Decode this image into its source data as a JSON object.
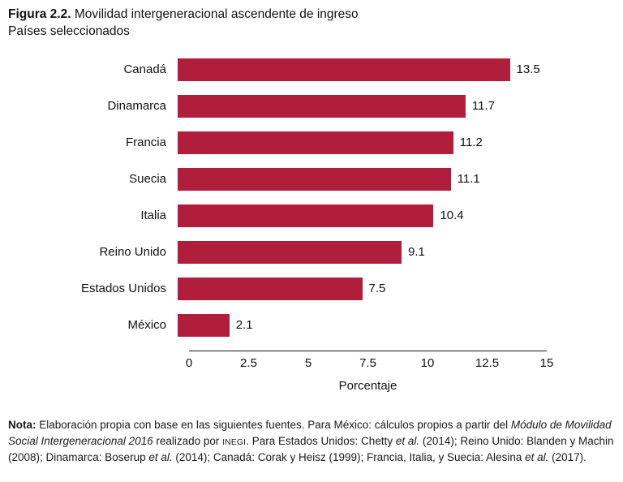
{
  "title": {
    "prefix": "Figura 2.2.",
    "text": " Movilidad intergeneracional ascendente de ingreso",
    "subtitle": "Países seleccionados"
  },
  "chart_data": {
    "type": "bar",
    "orientation": "horizontal",
    "categories": [
      "Canadá",
      "Dinamarca",
      "Francia",
      "Suecia",
      "Italia",
      "Reino Unido",
      "Estados Unidos",
      "México"
    ],
    "values": [
      13.5,
      11.7,
      11.2,
      11.1,
      10.4,
      9.1,
      7.5,
      2.1
    ],
    "value_labels": [
      "13.5",
      "11.7",
      "11.2",
      "11.1",
      "10.4",
      "9.1",
      "7.5",
      "2.1"
    ],
    "title": "Figura 2.2. Movilidad intergeneracional ascendente de ingreso",
    "subtitle": "Países seleccionados",
    "xlabel": "Porcentaje",
    "ylabel": "",
    "xlim": [
      0,
      15
    ],
    "xticks": [
      0,
      2.5,
      5,
      7.5,
      10,
      12.5,
      15
    ],
    "xtick_labels": [
      "0",
      "2.5",
      "5",
      "7.5",
      "10",
      "12.5",
      "15"
    ],
    "bar_color": "#b01e3c",
    "grid": false,
    "legend": false
  },
  "note": {
    "segments": [
      {
        "text": "Nota:",
        "style": "bold"
      },
      {
        "text": " Elaboración propia con base en las siguientes fuentes. Para México: cálculos propios a partir del ",
        "style": "normal"
      },
      {
        "text": "Módulo de Movilidad Social Intergeneracional 2016",
        "style": "italic"
      },
      {
        "text": " realizado por ",
        "style": "normal"
      },
      {
        "text": "INEGI",
        "style": "smallcaps"
      },
      {
        "text": ". Para Estados Unidos: Chetty ",
        "style": "normal"
      },
      {
        "text": "et al.",
        "style": "italic"
      },
      {
        "text": " (2014); Reino Unido: Blanden y Machin (2008); Dinamarca: Boserup ",
        "style": "normal"
      },
      {
        "text": "et al.",
        "style": "italic"
      },
      {
        "text": " (2014); Canadá: Corak y Heisz (1999); Francia, Italia, y Suecia: Alesina ",
        "style": "normal"
      },
      {
        "text": "et al.",
        "style": "italic"
      },
      {
        "text": " (2017).",
        "style": "normal"
      }
    ]
  }
}
